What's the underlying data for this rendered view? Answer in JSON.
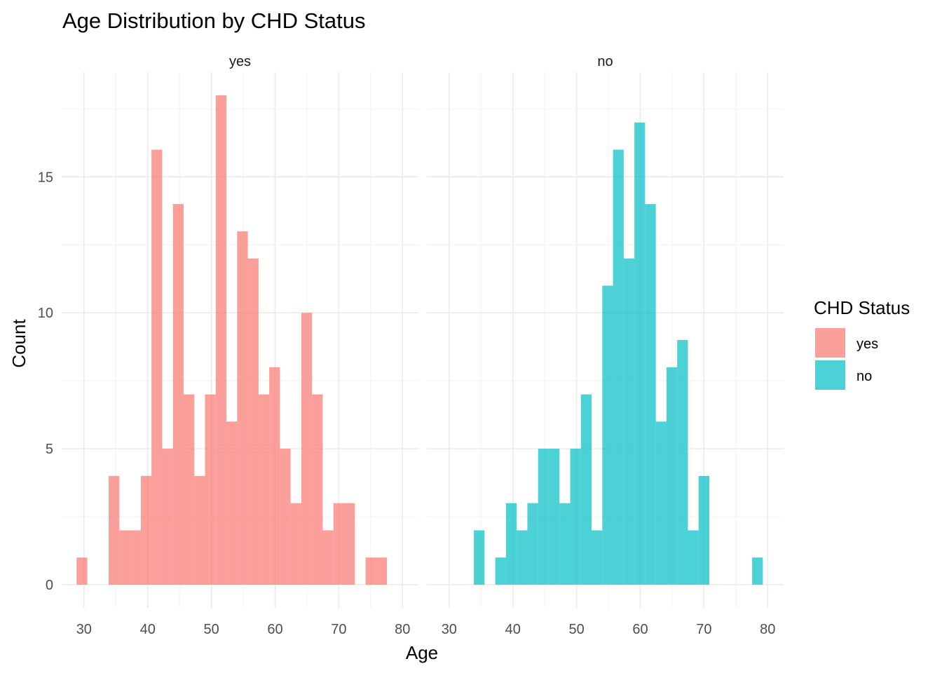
{
  "chart_data": {
    "type": "bar",
    "title": "Age Distribution by CHD Status",
    "xlabel": "Age",
    "ylabel": "Count",
    "xlim": [
      26.5,
      82.5
    ],
    "ylim": [
      -0.85,
      18.85
    ],
    "x_ticks": [
      30,
      40,
      50,
      60,
      70,
      80
    ],
    "y_ticks": [
      0,
      5,
      10,
      15
    ],
    "bin_width": 1.68,
    "grid": true,
    "legend": {
      "title": "CHD Status",
      "position": "right",
      "items": [
        {
          "label": "yes",
          "color": "#F8766D"
        },
        {
          "label": "no",
          "color": "#00BFC4"
        }
      ]
    },
    "facets": [
      {
        "strip": "yes",
        "color": "#F8766D",
        "bins": [
          {
            "x": 29.68,
            "count": 1
          },
          {
            "x": 34.72,
            "count": 4
          },
          {
            "x": 36.4,
            "count": 2
          },
          {
            "x": 38.08,
            "count": 2
          },
          {
            "x": 39.76,
            "count": 4
          },
          {
            "x": 41.44,
            "count": 16
          },
          {
            "x": 43.12,
            "count": 5
          },
          {
            "x": 44.8,
            "count": 14
          },
          {
            "x": 46.48,
            "count": 7
          },
          {
            "x": 48.16,
            "count": 4
          },
          {
            "x": 49.84,
            "count": 7
          },
          {
            "x": 51.52,
            "count": 18
          },
          {
            "x": 53.2,
            "count": 6
          },
          {
            "x": 54.88,
            "count": 13
          },
          {
            "x": 56.56,
            "count": 12
          },
          {
            "x": 58.24,
            "count": 7
          },
          {
            "x": 59.92,
            "count": 8
          },
          {
            "x": 61.6,
            "count": 5
          },
          {
            "x": 63.28,
            "count": 3
          },
          {
            "x": 64.96,
            "count": 10
          },
          {
            "x": 66.64,
            "count": 7
          },
          {
            "x": 68.32,
            "count": 2
          },
          {
            "x": 70.0,
            "count": 3
          },
          {
            "x": 71.68,
            "count": 3
          },
          {
            "x": 75.04,
            "count": 1
          },
          {
            "x": 76.72,
            "count": 1
          }
        ]
      },
      {
        "strip": "no",
        "color": "#00BFC4",
        "bins": [
          {
            "x": 34.72,
            "count": 2
          },
          {
            "x": 38.08,
            "count": 1
          },
          {
            "x": 39.76,
            "count": 3
          },
          {
            "x": 41.44,
            "count": 2
          },
          {
            "x": 43.12,
            "count": 3
          },
          {
            "x": 44.8,
            "count": 5
          },
          {
            "x": 46.48,
            "count": 5
          },
          {
            "x": 48.16,
            "count": 3
          },
          {
            "x": 49.84,
            "count": 5
          },
          {
            "x": 51.52,
            "count": 7
          },
          {
            "x": 53.2,
            "count": 2
          },
          {
            "x": 54.88,
            "count": 11
          },
          {
            "x": 56.56,
            "count": 16
          },
          {
            "x": 58.24,
            "count": 12
          },
          {
            "x": 59.92,
            "count": 17
          },
          {
            "x": 61.6,
            "count": 14
          },
          {
            "x": 63.28,
            "count": 6
          },
          {
            "x": 64.96,
            "count": 8
          },
          {
            "x": 66.64,
            "count": 9
          },
          {
            "x": 68.32,
            "count": 2
          },
          {
            "x": 70.0,
            "count": 4
          },
          {
            "x": 78.4,
            "count": 1
          }
        ]
      }
    ]
  }
}
